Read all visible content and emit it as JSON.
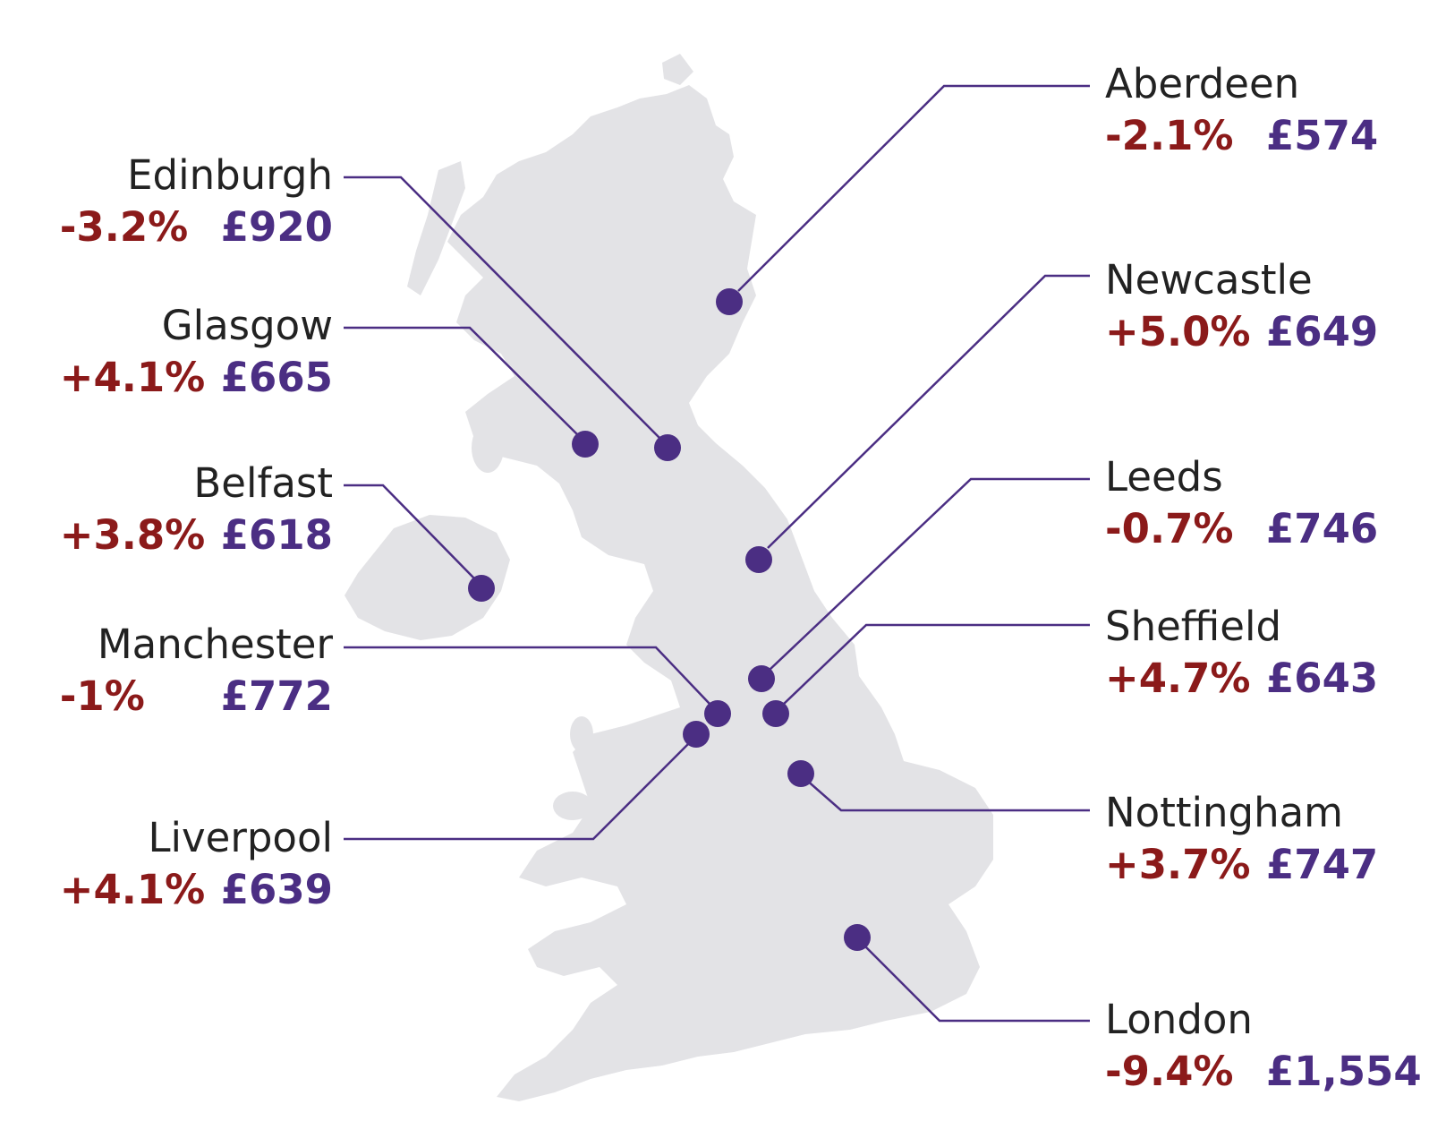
{
  "colors": {
    "land": "#e3e3e6",
    "connector": "#4b2e83",
    "dot": "#4b2e83",
    "change": "#8b1a1a",
    "price": "#4b2e83",
    "city_text": "#222222"
  },
  "cities": [
    {
      "id": "aberdeen",
      "name": "Aberdeen",
      "change": "-2.1%",
      "price": "£574",
      "side": "right"
    },
    {
      "id": "edinburgh",
      "name": "Edinburgh",
      "change": "-3.2%",
      "price": "£920",
      "side": "left"
    },
    {
      "id": "newcastle",
      "name": "Newcastle",
      "change": "+5.0%",
      "price": "£649",
      "side": "right"
    },
    {
      "id": "glasgow",
      "name": "Glasgow",
      "change": "+4.1%",
      "price": "£665",
      "side": "left"
    },
    {
      "id": "leeds",
      "name": "Leeds",
      "change": "-0.7%",
      "price": "£746",
      "side": "right"
    },
    {
      "id": "belfast",
      "name": "Belfast",
      "change": "+3.8%",
      "price": "£618",
      "side": "left"
    },
    {
      "id": "sheffield",
      "name": "Sheffield",
      "change": "+4.7%",
      "price": "£643",
      "side": "right"
    },
    {
      "id": "manchester",
      "name": "Manchester",
      "change": "-1%",
      "price": "£772",
      "side": "left"
    },
    {
      "id": "nottingham",
      "name": "Nottingham",
      "change": "+3.7%",
      "price": "£747",
      "side": "right"
    },
    {
      "id": "liverpool",
      "name": "Liverpool",
      "change": "+4.1%",
      "price": "£639",
      "side": "left"
    },
    {
      "id": "london",
      "name": "London",
      "change": "-9.4%",
      "price": "£1,554",
      "side": "right"
    }
  ]
}
